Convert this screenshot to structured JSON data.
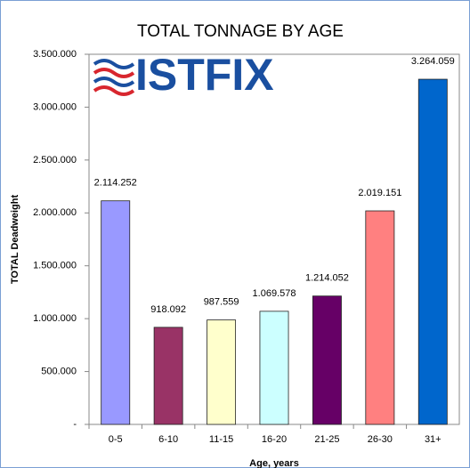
{
  "chart_data": {
    "type": "bar",
    "title": "TOTAL TONNAGE BY AGE",
    "logo": "ISTFIX",
    "x_label": "Age, years",
    "y_label": "TOTAL Deadweight",
    "categories": [
      "0-5",
      "6-10",
      "11-15",
      "16-20",
      "21-25",
      "26-30",
      "31+"
    ],
    "values": [
      2114252,
      918092,
      987559,
      1069578,
      1214052,
      2019151,
      3264059
    ],
    "value_labels": [
      "2.114.252",
      "918.092",
      "987.559",
      "1.069.578",
      "1.214.052",
      "2.019.151",
      "3.264.059"
    ],
    "colors": [
      "#9999ff",
      "#993366",
      "#ffffcc",
      "#ccffff",
      "#660066",
      "#ff8080",
      "#0066cc"
    ],
    "ylim": [
      0,
      3500000
    ],
    "yticks": [
      {
        "value": 0,
        "label": "-"
      },
      {
        "value": 500000,
        "label": "500.000"
      },
      {
        "value": 1000000,
        "label": "1.000.000"
      },
      {
        "value": 1500000,
        "label": "1.500.000"
      },
      {
        "value": 2000000,
        "label": "2.000.000"
      },
      {
        "value": 2500000,
        "label": "2.500.000"
      },
      {
        "value": 3000000,
        "label": "3.000.000"
      },
      {
        "value": 3500000,
        "label": "3.500.000"
      }
    ],
    "grid": false
  }
}
